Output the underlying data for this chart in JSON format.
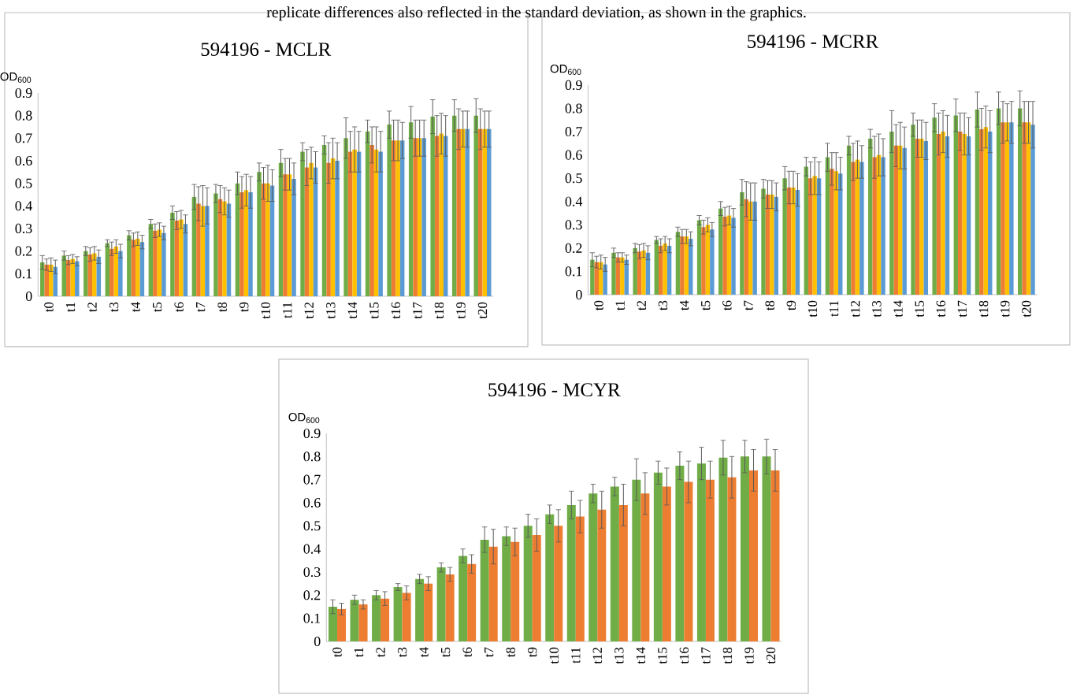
{
  "chart_data": [
    {
      "type": "bar",
      "title": "594196 - MCLR",
      "ylabel": "OD$_{600}$",
      "annotations": [
        "replicate differences also reflected in the standard deviation, as shown in the graphics."
      ],
      "categories": [
        "t0",
        "t1",
        "t2",
        "t3",
        "t4",
        "t5",
        "t6",
        "t7",
        "t8",
        "t9",
        "t10",
        "t11",
        "t12",
        "t13",
        "t14",
        "t15",
        "t16",
        "t17",
        "t18",
        "t19",
        "t20"
      ],
      "ylim": [
        0,
        0.9
      ],
      "yticks": [
        0,
        0.1,
        0.2,
        0.3,
        0.4,
        0.5,
        0.6,
        0.7,
        0.8,
        0.9
      ],
      "series": [
        {
          "color": "#70ad47",
          "values": [
            0.15,
            0.18,
            0.2,
            0.235,
            0.27,
            0.32,
            0.37,
            0.44,
            0.455,
            0.5,
            0.55,
            0.59,
            0.64,
            0.67,
            0.7,
            0.73,
            0.76,
            0.77,
            0.795,
            0.8,
            0.8
          ],
          "errors": [
            0.03,
            0.02,
            0.02,
            0.015,
            0.02,
            0.02,
            0.03,
            0.055,
            0.04,
            0.05,
            0.04,
            0.06,
            0.04,
            0.04,
            0.09,
            0.05,
            0.06,
            0.07,
            0.075,
            0.07,
            0.075
          ]
        },
        {
          "color": "#ed7d31",
          "values": [
            0.14,
            0.16,
            0.185,
            0.21,
            0.25,
            0.29,
            0.335,
            0.41,
            0.43,
            0.46,
            0.5,
            0.54,
            0.57,
            0.59,
            0.64,
            0.67,
            0.69,
            0.7,
            0.71,
            0.74,
            0.74
          ],
          "errors": [
            0.025,
            0.02,
            0.03,
            0.03,
            0.03,
            0.03,
            0.04,
            0.075,
            0.06,
            0.07,
            0.07,
            0.07,
            0.08,
            0.09,
            0.09,
            0.08,
            0.09,
            0.08,
            0.09,
            0.09,
            0.09
          ]
        },
        {
          "color": "#ffc000",
          "values": [
            0.14,
            0.165,
            0.19,
            0.22,
            0.255,
            0.295,
            0.34,
            0.4,
            0.42,
            0.47,
            0.5,
            0.54,
            0.59,
            0.61,
            0.65,
            0.65,
            0.69,
            0.7,
            0.72,
            0.74,
            0.74
          ],
          "errors": [
            0.03,
            0.02,
            0.03,
            0.03,
            0.03,
            0.03,
            0.04,
            0.09,
            0.06,
            0.07,
            0.08,
            0.07,
            0.07,
            0.09,
            0.1,
            0.1,
            0.09,
            0.08,
            0.09,
            0.08,
            0.08
          ]
        },
        {
          "color": "#5b9bd5",
          "values": [
            0.13,
            0.155,
            0.175,
            0.2,
            0.24,
            0.28,
            0.32,
            0.4,
            0.41,
            0.46,
            0.49,
            0.52,
            0.57,
            0.6,
            0.64,
            0.64,
            0.69,
            0.7,
            0.71,
            0.74,
            0.74
          ],
          "errors": [
            0.03,
            0.02,
            0.03,
            0.03,
            0.03,
            0.03,
            0.04,
            0.08,
            0.06,
            0.07,
            0.07,
            0.07,
            0.07,
            0.08,
            0.09,
            0.09,
            0.08,
            0.08,
            0.09,
            0.08,
            0.08
          ]
        }
      ]
    },
    {
      "type": "bar",
      "title": "594196 - MCRR",
      "ylabel": "OD$_{600}$",
      "categories": [
        "t0",
        "t1",
        "t2",
        "t3",
        "t4",
        "t5",
        "t6",
        "t7",
        "t8",
        "t9",
        "t10",
        "t11",
        "t12",
        "t13",
        "t14",
        "t15",
        "t16",
        "t17",
        "t18",
        "t19",
        "t20"
      ],
      "ylim": [
        0,
        0.9
      ],
      "yticks": [
        0,
        0.1,
        0.2,
        0.3,
        0.4,
        0.5,
        0.6,
        0.7,
        0.8,
        0.9
      ],
      "series": [
        {
          "color": "#70ad47",
          "values": [
            0.15,
            0.18,
            0.2,
            0.235,
            0.27,
            0.32,
            0.37,
            0.44,
            0.455,
            0.5,
            0.55,
            0.59,
            0.64,
            0.67,
            0.7,
            0.73,
            0.76,
            0.77,
            0.795,
            0.8,
            0.8
          ],
          "errors": [
            0.03,
            0.02,
            0.02,
            0.015,
            0.02,
            0.02,
            0.03,
            0.055,
            0.04,
            0.05,
            0.04,
            0.06,
            0.04,
            0.04,
            0.09,
            0.05,
            0.06,
            0.07,
            0.075,
            0.07,
            0.075
          ]
        },
        {
          "color": "#ed7d31",
          "values": [
            0.14,
            0.16,
            0.185,
            0.21,
            0.25,
            0.29,
            0.335,
            0.41,
            0.43,
            0.46,
            0.5,
            0.54,
            0.57,
            0.59,
            0.64,
            0.67,
            0.69,
            0.7,
            0.71,
            0.74,
            0.74
          ],
          "errors": [
            0.025,
            0.02,
            0.03,
            0.03,
            0.03,
            0.03,
            0.04,
            0.075,
            0.06,
            0.07,
            0.07,
            0.07,
            0.08,
            0.09,
            0.09,
            0.08,
            0.09,
            0.08,
            0.09,
            0.09,
            0.09
          ]
        },
        {
          "color": "#ffc000",
          "values": [
            0.14,
            0.16,
            0.19,
            0.22,
            0.25,
            0.3,
            0.34,
            0.4,
            0.43,
            0.46,
            0.51,
            0.53,
            0.58,
            0.6,
            0.64,
            0.67,
            0.7,
            0.69,
            0.72,
            0.74,
            0.74
          ],
          "errors": [
            0.03,
            0.02,
            0.03,
            0.03,
            0.03,
            0.03,
            0.04,
            0.08,
            0.06,
            0.07,
            0.08,
            0.08,
            0.08,
            0.09,
            0.1,
            0.08,
            0.09,
            0.09,
            0.09,
            0.08,
            0.09
          ]
        },
        {
          "color": "#5b9bd5",
          "values": [
            0.13,
            0.15,
            0.18,
            0.21,
            0.24,
            0.28,
            0.33,
            0.4,
            0.42,
            0.45,
            0.5,
            0.52,
            0.57,
            0.59,
            0.63,
            0.66,
            0.68,
            0.68,
            0.7,
            0.74,
            0.73
          ],
          "errors": [
            0.03,
            0.02,
            0.03,
            0.03,
            0.03,
            0.03,
            0.04,
            0.08,
            0.06,
            0.07,
            0.07,
            0.07,
            0.07,
            0.08,
            0.09,
            0.08,
            0.09,
            0.08,
            0.09,
            0.09,
            0.1
          ]
        }
      ]
    },
    {
      "type": "bar",
      "title": "594196 - MCYR",
      "ylabel": "OD$_{600}$",
      "categories": [
        "t0",
        "t1",
        "t2",
        "t3",
        "t4",
        "t5",
        "t6",
        "t7",
        "t8",
        "t9",
        "t10",
        "t11",
        "t12",
        "t13",
        "t14",
        "t15",
        "t16",
        "t17",
        "t18",
        "t19",
        "t20"
      ],
      "ylim": [
        0,
        0.9
      ],
      "yticks": [
        0,
        0.1,
        0.2,
        0.3,
        0.4,
        0.5,
        0.6,
        0.7,
        0.8,
        0.9
      ],
      "series": [
        {
          "color": "#70ad47",
          "values": [
            0.15,
            0.18,
            0.2,
            0.235,
            0.27,
            0.32,
            0.37,
            0.44,
            0.455,
            0.5,
            0.55,
            0.59,
            0.64,
            0.67,
            0.7,
            0.73,
            0.76,
            0.77,
            0.795,
            0.8,
            0.8
          ],
          "errors": [
            0.03,
            0.02,
            0.02,
            0.015,
            0.02,
            0.02,
            0.03,
            0.055,
            0.04,
            0.05,
            0.04,
            0.06,
            0.04,
            0.04,
            0.09,
            0.05,
            0.06,
            0.07,
            0.075,
            0.07,
            0.075
          ]
        },
        {
          "color": "#ed7d31",
          "values": [
            0.14,
            0.16,
            0.185,
            0.21,
            0.25,
            0.29,
            0.335,
            0.41,
            0.43,
            0.46,
            0.5,
            0.54,
            0.57,
            0.59,
            0.64,
            0.67,
            0.69,
            0.7,
            0.71,
            0.74,
            0.74
          ],
          "errors": [
            0.025,
            0.02,
            0.03,
            0.03,
            0.03,
            0.03,
            0.04,
            0.075,
            0.06,
            0.07,
            0.07,
            0.07,
            0.08,
            0.09,
            0.09,
            0.08,
            0.09,
            0.08,
            0.09,
            0.09,
            0.09
          ]
        }
      ]
    }
  ]
}
